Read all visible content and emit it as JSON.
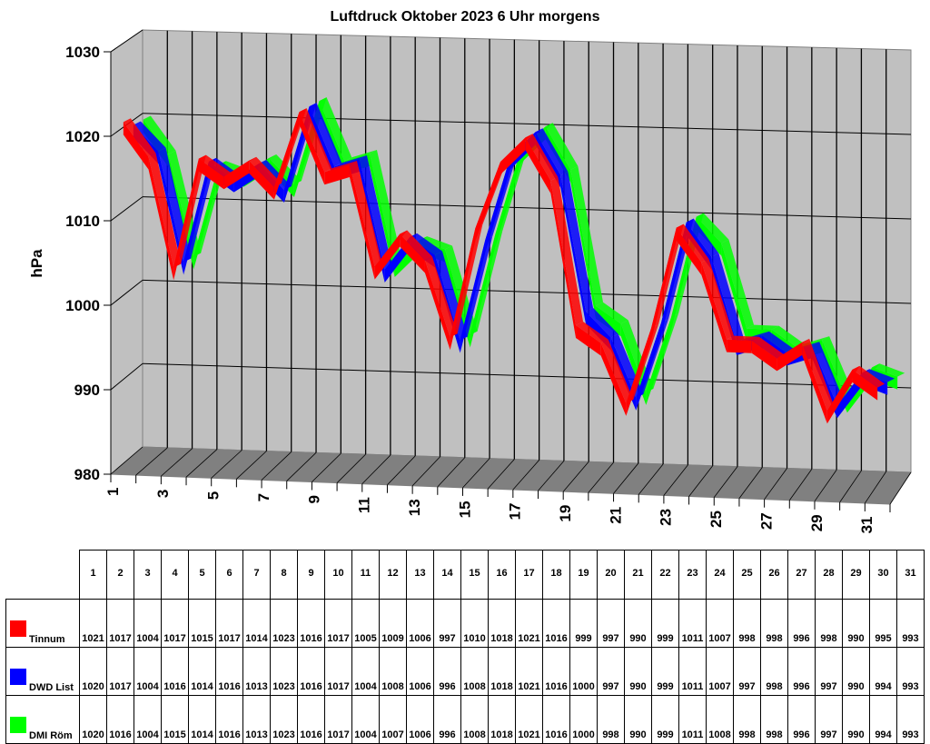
{
  "chart_data": {
    "type": "line",
    "style": "3d-ribbon",
    "title": "Luftdruck Oktober 2023 6 Uhr morgens",
    "xlabel": "",
    "ylabel": "hPa",
    "ylim": [
      980,
      1030
    ],
    "yticks": [
      980,
      990,
      1000,
      1010,
      1020,
      1030
    ],
    "xticks": [
      1,
      3,
      5,
      7,
      9,
      11,
      13,
      15,
      17,
      19,
      21,
      23,
      25,
      27,
      29,
      31
    ],
    "grid": true,
    "legend_position": "table-below",
    "x": [
      1,
      2,
      3,
      4,
      5,
      6,
      7,
      8,
      9,
      10,
      11,
      12,
      13,
      14,
      15,
      16,
      17,
      18,
      19,
      20,
      21,
      22,
      23,
      24,
      25,
      26,
      27,
      28,
      29,
      30,
      31
    ],
    "series": [
      {
        "name": "Tinnum",
        "color": "#ff0000",
        "values": [
          1021,
          1017,
          1004,
          1017,
          1015,
          1017,
          1014,
          1023,
          1016,
          1017,
          1005,
          1009,
          1006,
          997,
          1010,
          1018,
          1021,
          1016,
          999,
          997,
          990,
          999,
          1011,
          1007,
          998,
          998,
          996,
          998,
          990,
          995,
          993
        ]
      },
      {
        "name": "DWD List",
        "color": "#0000ff",
        "values": [
          1020,
          1017,
          1004,
          1016,
          1014,
          1016,
          1013,
          1023,
          1016,
          1017,
          1004,
          1008,
          1006,
          996,
          1008,
          1018,
          1021,
          1016,
          1000,
          997,
          990,
          999,
          1011,
          1007,
          997,
          998,
          996,
          997,
          990,
          994,
          993
        ]
      },
      {
        "name": "DMI Röm",
        "color": "#00ff00",
        "values": [
          1020,
          1016,
          1004,
          1015,
          1014,
          1016,
          1013,
          1023,
          1016,
          1017,
          1004,
          1007,
          1006,
          996,
          1008,
          1018,
          1021,
          1016,
          1000,
          998,
          990,
          999,
          1011,
          1008,
          998,
          998,
          996,
          997,
          990,
          994,
          993
        ]
      }
    ]
  },
  "colors": {
    "wall": "#c0c0c0",
    "floor": "#808080",
    "wall_edge": "#808080"
  }
}
